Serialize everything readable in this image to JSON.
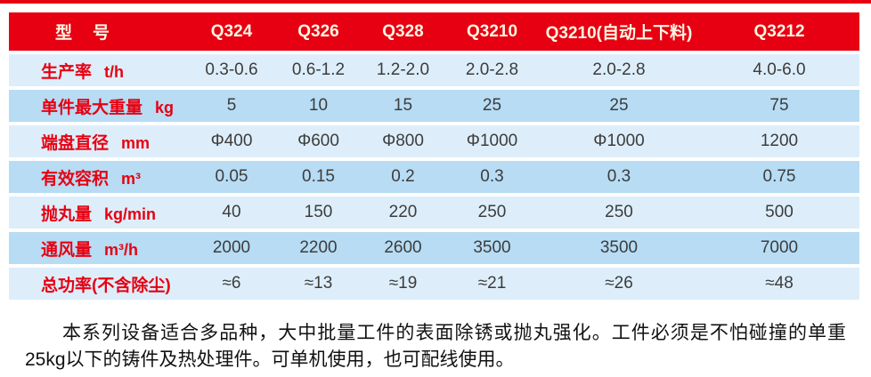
{
  "colors": {
    "header_bg": "#e60012",
    "header_text": "#fdf6e3",
    "row_light_bg": "#ddeefa",
    "row_dark_bg": "#b7dcf4",
    "label_text": "#e60012",
    "value_text": "#3c3c3c",
    "top_strip": "#e60012"
  },
  "table": {
    "header": {
      "model_label": "型　号",
      "columns": [
        "Q324",
        "Q326",
        "Q328",
        "Q3210",
        "Q3210(自动上下料)",
        "Q3212"
      ]
    },
    "rows": [
      {
        "label": "生产率",
        "unit": "t/h",
        "values": [
          "0.3-0.6",
          "0.6-1.2",
          "1.2-2.0",
          "2.0-2.8",
          "2.0-2.8",
          "4.0-6.0"
        ]
      },
      {
        "label": "单件最大重量",
        "unit": "kg",
        "values": [
          "5",
          "10",
          "15",
          "25",
          "25",
          "75"
        ]
      },
      {
        "label": "端盘直径",
        "unit": "mm",
        "values": [
          "Φ400",
          "Φ600",
          "Φ800",
          "Φ1000",
          "Φ1000",
          "1200"
        ]
      },
      {
        "label": "有效容积",
        "unit": "m³",
        "values": [
          "0.05",
          "0.15",
          "0.2",
          "0.3",
          "0.3",
          "0.75"
        ]
      },
      {
        "label": "抛丸量",
        "unit": "kg/min",
        "values": [
          "40",
          "150",
          "220",
          "250",
          "250",
          "500"
        ]
      },
      {
        "label": "通风量",
        "unit": "m³/h",
        "values": [
          "2000",
          "2200",
          "2600",
          "3500",
          "3500",
          "7000"
        ]
      },
      {
        "label": "总功率(不含除尘)",
        "unit": "",
        "values": [
          "≈6",
          "≈13",
          "≈19",
          "≈21",
          "≈26",
          "≈48"
        ]
      }
    ]
  },
  "description": {
    "text": "本系列设备适合多品种，大中批量工件的表面除锈或抛丸强化。工件必须是不怕碰撞的单重25kg以下的铸件及热处理件。可单机使用，也可配线使用。"
  }
}
